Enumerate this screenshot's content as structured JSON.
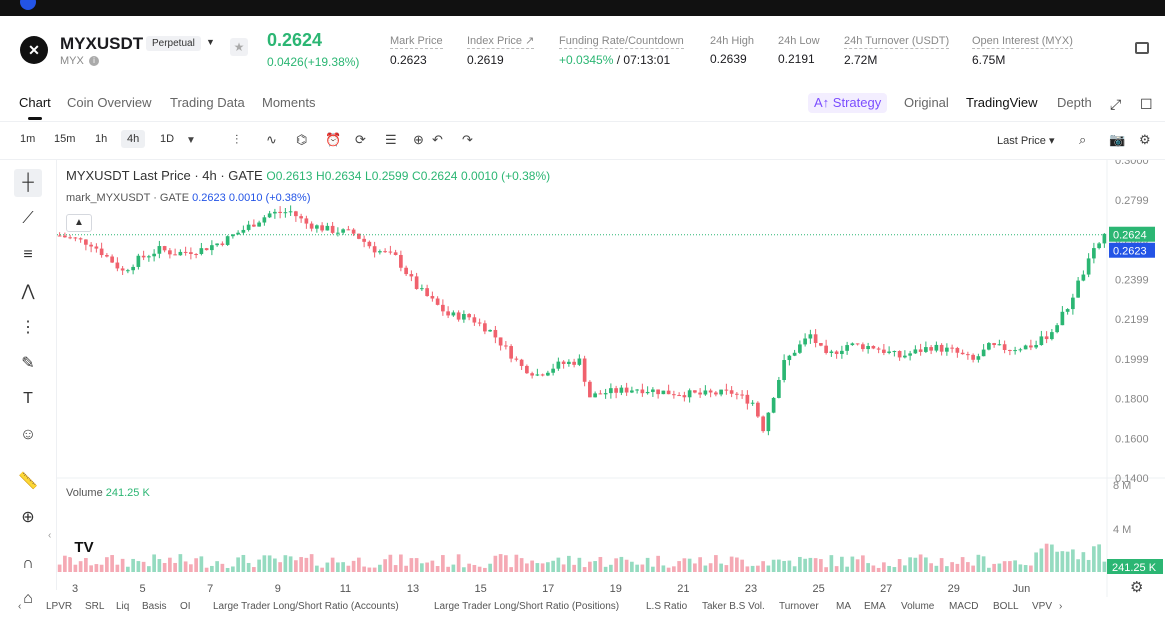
{
  "app": {
    "brand_partial": "Gate"
  },
  "header": {
    "symbol": "MYXUSDT",
    "contract_type": "Perpetual",
    "base": "MYX",
    "last_price": "0.2624",
    "change": "0.0426(+19.38%)",
    "stats": [
      {
        "label": "Mark Price",
        "value": "0.2623"
      },
      {
        "label": "Index Price",
        "value": "0.2619"
      },
      {
        "label": "Funding Rate/Countdown",
        "value_green": "+0.0345%",
        "value": "/ 07:13:01"
      },
      {
        "label": "24h High",
        "value": "0.2639"
      },
      {
        "label": "24h Low",
        "value": "0.2191"
      },
      {
        "label": "24h Turnover (USDT)",
        "value": "2.72M"
      },
      {
        "label": "Open Interest (MYX)",
        "value": "6.75M"
      }
    ]
  },
  "tabs": {
    "items": [
      "Chart",
      "Coin Overview",
      "Trading Data",
      "Moments"
    ],
    "strategy": "Strategy",
    "views": [
      "Original",
      "TradingView",
      "Depth"
    ]
  },
  "toolbar": {
    "timeframes": [
      "1m",
      "15m",
      "1h",
      "4h",
      "1D"
    ],
    "active_timeframe": "4h",
    "price_source": "Last Price"
  },
  "legend": {
    "main": "MYXUSDT Last Price · 4h · GATE",
    "o": "O0.2613",
    "h": "H0.2634",
    "l": "L0.2599",
    "c": "C0.2624",
    "chg": "0.0010 (+0.38%)",
    "mark_label": "mark_MYXUSDT · GATE",
    "mark_value": "0.2623",
    "mark_chg": "0.0010 (+0.38%)",
    "volume_label": "Volume",
    "volume_value": "241.25 K"
  },
  "colors": {
    "up": "#2bb673",
    "down": "#f0616d",
    "mark": "#2354e6",
    "vol_up": "#95dbc0",
    "vol_down": "#f5a9b4"
  },
  "chart_data": {
    "type": "candlestick",
    "title": "MYXUSDT Last Price · 4h · GATE",
    "y_ticks": [
      "0.3000",
      "0.2799",
      "0.2599",
      "0.2399",
      "0.2199",
      "0.1999",
      "0.1800",
      "0.1600",
      "0.1400"
    ],
    "ylim": [
      0.14,
      0.3
    ],
    "x_ticks": [
      "3",
      "5",
      "7",
      "9",
      "11",
      "13",
      "15",
      "17",
      "19",
      "21",
      "23",
      "25",
      "27",
      "29",
      "Jun"
    ],
    "last_price_tag": "0.2624",
    "mark_price_tag": "0.2623",
    "volume_ticks": [
      "8 M",
      "4 M"
    ],
    "volume_tag": "241.25 K",
    "close_path": [
      {
        "x": 0,
        "y": 0.262
      },
      {
        "x": 6,
        "y": 0.258
      },
      {
        "x": 10,
        "y": 0.249
      },
      {
        "x": 12,
        "y": 0.244
      },
      {
        "x": 15,
        "y": 0.25
      },
      {
        "x": 19,
        "y": 0.255
      },
      {
        "x": 22,
        "y": 0.253
      },
      {
        "x": 27,
        "y": 0.255
      },
      {
        "x": 31,
        "y": 0.259
      },
      {
        "x": 35,
        "y": 0.265
      },
      {
        "x": 40,
        "y": 0.273
      },
      {
        "x": 44,
        "y": 0.274
      },
      {
        "x": 47,
        "y": 0.268
      },
      {
        "x": 51,
        "y": 0.265
      },
      {
        "x": 56,
        "y": 0.263
      },
      {
        "x": 60,
        "y": 0.255
      },
      {
        "x": 64,
        "y": 0.251
      },
      {
        "x": 68,
        "y": 0.236
      },
      {
        "x": 74,
        "y": 0.222
      },
      {
        "x": 78,
        "y": 0.221
      },
      {
        "x": 82,
        "y": 0.214
      },
      {
        "x": 86,
        "y": 0.202
      },
      {
        "x": 88,
        "y": 0.196
      },
      {
        "x": 91,
        "y": 0.192
      },
      {
        "x": 95,
        "y": 0.197
      },
      {
        "x": 99,
        "y": 0.199
      },
      {
        "x": 101,
        "y": 0.181
      },
      {
        "x": 104,
        "y": 0.183
      },
      {
        "x": 110,
        "y": 0.185
      },
      {
        "x": 116,
        "y": 0.183
      },
      {
        "x": 122,
        "y": 0.182
      },
      {
        "x": 128,
        "y": 0.183
      },
      {
        "x": 132,
        "y": 0.178
      },
      {
        "x": 134,
        "y": 0.165
      },
      {
        "x": 136,
        "y": 0.182
      },
      {
        "x": 138,
        "y": 0.198
      },
      {
        "x": 140,
        "y": 0.204
      },
      {
        "x": 143,
        "y": 0.212
      },
      {
        "x": 146,
        "y": 0.201
      },
      {
        "x": 150,
        "y": 0.207
      },
      {
        "x": 155,
        "y": 0.206
      },
      {
        "x": 160,
        "y": 0.201
      },
      {
        "x": 166,
        "y": 0.206
      },
      {
        "x": 170,
        "y": 0.204
      },
      {
        "x": 174,
        "y": 0.199
      },
      {
        "x": 177,
        "y": 0.206
      },
      {
        "x": 181,
        "y": 0.205
      },
      {
        "x": 186,
        "y": 0.207
      },
      {
        "x": 189,
        "y": 0.214
      },
      {
        "x": 192,
        "y": 0.226
      },
      {
        "x": 194,
        "y": 0.238
      },
      {
        "x": 197,
        "y": 0.254
      },
      {
        "x": 199,
        "y": 0.2624
      }
    ],
    "candle_count": 200
  },
  "indicators": [
    "LPVR",
    "SRL",
    "Liq",
    "Basis",
    "OI",
    "Large Trader Long/Short Ratio (Accounts)",
    "Large Trader Long/Short Ratio (Positions)",
    "L.S Ratio",
    "Taker B.S Vol.",
    "Turnover",
    "MA",
    "EMA",
    "Volume",
    "MACD",
    "BOLL",
    "VPV"
  ]
}
